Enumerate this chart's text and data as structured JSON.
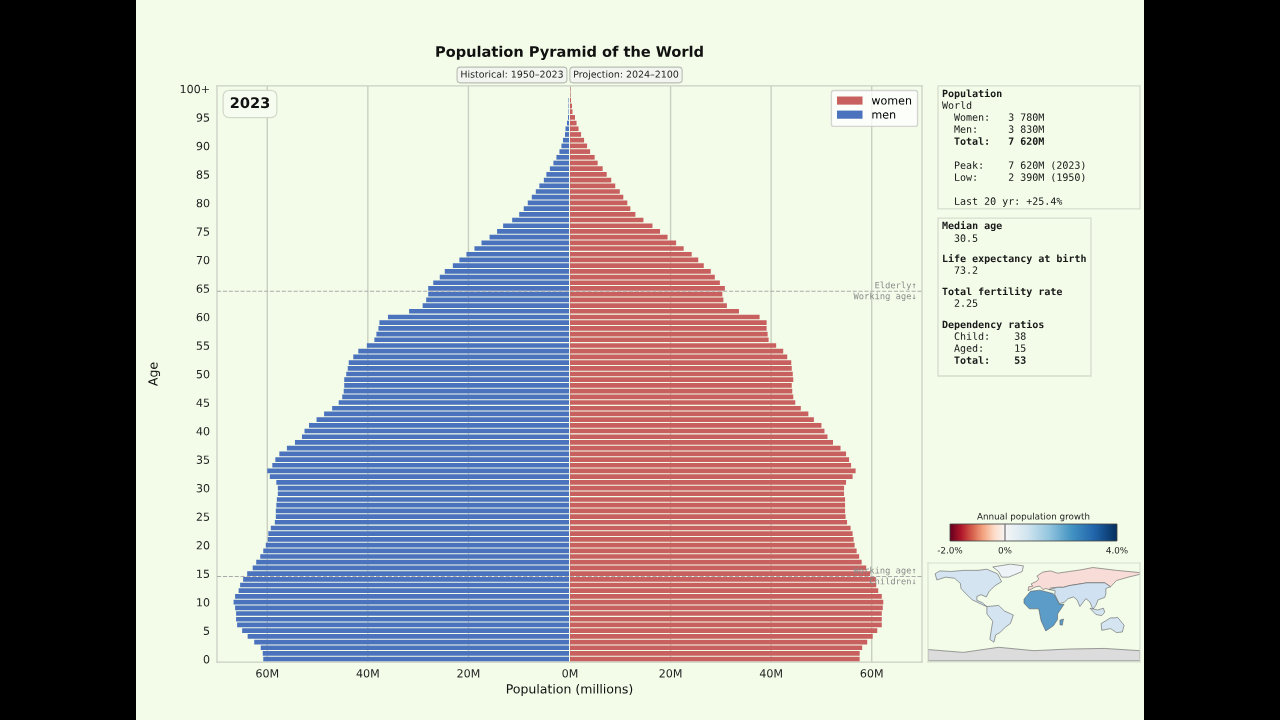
{
  "chart_data": [
    {
      "type": "bar",
      "orientation": "horizontal",
      "title": "Population Pyramid of the World",
      "xlabel": "Population (millions)",
      "ylabel": "Age",
      "x": [
        0,
        1,
        2,
        3,
        4,
        5,
        6,
        7,
        8,
        9,
        10,
        11,
        12,
        13,
        14,
        15,
        16,
        17,
        18,
        19,
        20,
        21,
        22,
        23,
        24,
        25,
        26,
        27,
        28,
        29,
        30,
        31,
        32,
        33,
        34,
        35,
        36,
        37,
        38,
        39,
        40,
        41,
        42,
        43,
        44,
        45,
        46,
        47,
        48,
        49,
        50,
        51,
        52,
        53,
        54,
        55,
        56,
        57,
        58,
        59,
        60,
        61,
        62,
        63,
        64,
        65,
        66,
        67,
        68,
        69,
        70,
        71,
        72,
        73,
        74,
        75,
        76,
        77,
        78,
        79,
        80,
        81,
        82,
        83,
        84,
        85,
        86,
        87,
        88,
        89,
        90,
        91,
        92,
        93,
        94,
        95,
        96,
        97,
        98
      ],
      "series": [
        {
          "name": "men",
          "color": "#4a72bd",
          "values": [
            60.8,
            60.9,
            61.3,
            62.6,
            63.9,
            65.0,
            66.0,
            66.2,
            66.2,
            66.4,
            66.7,
            66.4,
            65.7,
            65.4,
            64.8,
            64.0,
            62.9,
            62.2,
            61.4,
            60.8,
            60.3,
            59.9,
            59.8,
            59.3,
            58.5,
            58.3,
            58.3,
            58.2,
            58.1,
            57.9,
            57.9,
            58.2,
            59.5,
            60.0,
            59.0,
            58.4,
            57.6,
            56.1,
            54.5,
            53.1,
            52.6,
            51.7,
            50.2,
            48.7,
            47.1,
            45.8,
            45.1,
            44.8,
            44.7,
            44.7,
            44.3,
            44.0,
            43.8,
            42.9,
            41.9,
            40.2,
            38.7,
            38.3,
            37.9,
            37.7,
            36.0,
            31.8,
            29.1,
            28.4,
            28.0,
            28.0,
            27.0,
            25.7,
            24.7,
            23.1,
            21.8,
            20.4,
            18.8,
            17.4,
            15.8,
            14.3,
            13.1,
            11.3,
            9.9,
            9.0,
            8.2,
            7.4,
            6.6,
            5.9,
            5.0,
            4.5,
            3.8,
            3.1,
            2.5,
            1.9,
            1.5,
            1.2,
            0.8,
            0.7,
            0.4,
            0.2,
            0.1,
            0.1,
            0.1
          ]
        }
      ],
      "xlim": [
        70,
        0
      ],
      "xticks": [
        {
          "value": 60,
          "label": "60M"
        },
        {
          "value": 40,
          "label": "40M"
        },
        {
          "value": 20,
          "label": "20M"
        }
      ],
      "ylim": [
        -0.5,
        100.5
      ],
      "yticks": [
        0,
        5,
        10,
        15,
        20,
        25,
        30,
        35,
        40,
        45,
        50,
        55,
        60,
        65,
        70,
        75,
        80,
        85,
        90,
        95,
        {
          "value": 100,
          "label": "100+"
        }
      ],
      "grid": "x",
      "ref_lines": [
        {
          "axis": "y",
          "value": 64.5,
          "color": "#aaaaaa",
          "line_style": "dashed"
        },
        {
          "axis": "y",
          "value": 14.5,
          "color": "#aaaaaa",
          "line_style": "dashed"
        }
      ],
      "annotations": [
        "2023",
        "Historical: 1950–2023",
        "Projection: 2024–2100"
      ]
    },
    {
      "type": "bar",
      "orientation": "horizontal",
      "x": [
        0,
        1,
        2,
        3,
        4,
        5,
        6,
        7,
        8,
        9,
        10,
        11,
        12,
        13,
        14,
        15,
        16,
        17,
        18,
        19,
        20,
        21,
        22,
        23,
        24,
        25,
        26,
        27,
        28,
        29,
        30,
        31,
        32,
        33,
        34,
        35,
        36,
        37,
        38,
        39,
        40,
        41,
        42,
        43,
        44,
        45,
        46,
        47,
        48,
        49,
        50,
        51,
        52,
        53,
        54,
        55,
        56,
        57,
        58,
        59,
        60,
        61,
        62,
        63,
        64,
        65,
        66,
        67,
        68,
        69,
        70,
        71,
        72,
        73,
        74,
        75,
        76,
        77,
        78,
        79,
        80,
        81,
        82,
        83,
        84,
        85,
        86,
        87,
        88,
        89,
        90,
        91,
        92,
        93,
        94,
        95,
        96,
        97,
        98,
        99,
        100
      ],
      "series": [
        {
          "name": "women",
          "color": "#c8605f",
          "values": [
            57.6,
            57.6,
            58.1,
            59.1,
            60.2,
            61.1,
            62.0,
            62.0,
            62.0,
            62.2,
            62.3,
            62.0,
            61.3,
            60.9,
            60.8,
            59.7,
            58.9,
            58.0,
            57.5,
            57.0,
            56.6,
            56.4,
            56.2,
            55.8,
            55.1,
            54.8,
            54.7,
            54.7,
            54.7,
            54.5,
            54.5,
            54.9,
            56.2,
            56.8,
            55.9,
            55.5,
            54.9,
            53.8,
            52.3,
            51.2,
            50.6,
            50.0,
            48.5,
            47.4,
            45.9,
            44.8,
            44.4,
            44.2,
            44.1,
            44.4,
            44.3,
            44.1,
            44.0,
            43.2,
            42.4,
            41.0,
            39.5,
            39.3,
            39.1,
            39.1,
            37.7,
            33.6,
            31.2,
            30.5,
            30.3,
            30.8,
            29.8,
            28.8,
            28.0,
            26.6,
            25.5,
            24.2,
            22.6,
            21.1,
            19.4,
            17.9,
            16.4,
            14.6,
            13.0,
            12.0,
            11.4,
            10.6,
            9.9,
            9.0,
            8.2,
            7.3,
            6.5,
            5.5,
            4.9,
            4.0,
            3.4,
            2.8,
            2.2,
            1.7,
            1.3,
            1.0,
            0.5,
            0.4,
            0.2,
            0.1,
            0.1
          ]
        }
      ],
      "xlim": [
        0,
        70
      ],
      "xticks": [
        {
          "value": 0,
          "label": "0M"
        },
        {
          "value": 20,
          "label": "20M"
        },
        {
          "value": 40,
          "label": "40M"
        },
        {
          "value": 60,
          "label": "60M"
        }
      ],
      "ylim": [
        -0.5,
        100.5
      ],
      "tick_labels": "x",
      "grid": "x",
      "legend": "top right",
      "ref_lines": [
        {
          "axis": "y",
          "value": 64.5,
          "label": "Elderly↑\nWorking age↓",
          "color": "#aaaaaa",
          "line_style": "dashed"
        },
        {
          "axis": "y",
          "value": 14.5,
          "label": "Working age↑\nChildren↓",
          "color": "#aaaaaa",
          "line_style": "dashed"
        }
      ]
    },
    {
      "type": "other",
      "annotations": [
        "Population",
        "World",
        "Women:   3 780M",
        "Men:     3 830M",
        "Total:   7 620M",
        "Peak:    7 620M (2023)",
        "Low:     2 390M (1950)",
        "Last 20 yr: +25.4%",
        "Median age",
        "30.5",
        "Life expectancy at birth",
        "73.2",
        "Total fertility rate",
        "2.25",
        "Dependency ratios",
        "Child:    38",
        "Aged:     15",
        "Total:    53"
      ]
    },
    {
      "type": "other",
      "title": "Annual population growth",
      "annotations": [
        "-2.0%",
        "0%",
        "4.0%"
      ]
    }
  ]
}
